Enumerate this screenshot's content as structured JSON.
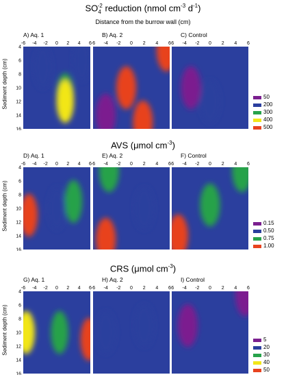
{
  "sections": [
    {
      "title_parts": [
        "SO",
        "4",
        "-2",
        " reduction (nmol cm",
        "-3",
        " d",
        "-1",
        ")"
      ],
      "subtitle": "Distance from the burrow wall (cm)",
      "ylabel": "Sediment depth (cm)",
      "panels": [
        {
          "label": "A) Aq. 1"
        },
        {
          "label": "B) Aq. 2"
        },
        {
          "label": "C) Control"
        }
      ],
      "legend": [
        {
          "label": "50",
          "color": "#7b1f8f"
        },
        {
          "label": "200",
          "color": "#2b3f9e"
        },
        {
          "label": "300",
          "color": "#27a24a"
        },
        {
          "label": "400",
          "color": "#f2e619"
        },
        {
          "label": "500",
          "color": "#e8431f"
        }
      ]
    },
    {
      "title_parts": [
        "AVS  (μmol cm",
        "-3",
        ")"
      ],
      "ylabel": "Sediment depth (cm)",
      "panels": [
        {
          "label": "D) Aq. 1"
        },
        {
          "label": "E) Aq. 2"
        },
        {
          "label": "F) Control"
        }
      ],
      "legend": [
        {
          "label": "0.15",
          "color": "#7b1f8f"
        },
        {
          "label": "0.50",
          "color": "#2b3f9e"
        },
        {
          "label": "0.75",
          "color": "#27a24a"
        },
        {
          "label": "1.00",
          "color": "#e8431f"
        }
      ]
    },
    {
      "title_parts": [
        "CRS  (μmol cm",
        "-3",
        ")"
      ],
      "ylabel": "Sediment depth (cm)",
      "panels": [
        {
          "label": "G) Aq. 1"
        },
        {
          "label": "H) Aq. 2"
        },
        {
          "label": "I) Control"
        }
      ],
      "legend": [
        {
          "label": "5",
          "color": "#7b1f8f"
        },
        {
          "label": "20",
          "color": "#2b3f9e"
        },
        {
          "label": "30",
          "color": "#27a24a"
        },
        {
          "label": "40",
          "color": "#f2e619"
        },
        {
          "label": "50",
          "color": "#e8431f"
        }
      ]
    }
  ],
  "chart_data": [
    {
      "type": "heatmap",
      "panel": "A) Aq. 1",
      "x_ticks": [
        "-6",
        "-4",
        "-2",
        "0",
        "2",
        "4",
        "6"
      ],
      "y_ticks": [
        "4",
        "6",
        "8",
        "10",
        "12",
        "14",
        "16"
      ],
      "xlim": [
        -6,
        6
      ],
      "ylim": [
        4,
        16
      ],
      "y_inverted": true,
      "features": [
        {
          "x": -2.5,
          "y": 7,
          "level": 200
        },
        {
          "x": 1.5,
          "y": 11,
          "level": 300
        },
        {
          "x": 1.5,
          "y": 12,
          "level": 400
        },
        {
          "x": 4.5,
          "y": 6,
          "level": 200
        }
      ]
    },
    {
      "type": "heatmap",
      "panel": "B) Aq. 2",
      "x_ticks": [
        "-6",
        "-4",
        "-2",
        "0",
        "2",
        "4",
        "6"
      ],
      "y_ticks": [
        "4",
        "6",
        "8",
        "10",
        "12",
        "14",
        "16"
      ],
      "xlim": [
        -6,
        6
      ],
      "ylim": [
        4,
        16
      ],
      "y_inverted": true,
      "features": [
        {
          "x": -0.8,
          "y": 10,
          "level": 500
        },
        {
          "x": 1.8,
          "y": 15,
          "level": 500
        },
        {
          "x": 5.5,
          "y": 4.5,
          "level": 500
        },
        {
          "x": -4,
          "y": 14,
          "level": 50
        }
      ]
    },
    {
      "type": "heatmap",
      "panel": "C) Control",
      "x_ticks": [
        "-6",
        "-4",
        "-2",
        "0",
        "2",
        "4",
        "6"
      ],
      "y_ticks": [
        "4",
        "6",
        "8",
        "10",
        "12",
        "14",
        "16"
      ],
      "xlim": [
        -6,
        6
      ],
      "ylim": [
        4,
        16
      ],
      "y_inverted": true,
      "features": [
        {
          "x": -3,
          "y": 10,
          "level": 50
        },
        {
          "x": 0,
          "y": 12,
          "level": 200
        }
      ]
    },
    {
      "type": "heatmap",
      "panel": "D) Aq. 1",
      "x_ticks": [
        "-6",
        "-4",
        "-2",
        "0",
        "2",
        "4",
        "6"
      ],
      "y_ticks": [
        "4",
        "6",
        "8",
        "10",
        "12",
        "14",
        "16"
      ],
      "xlim": [
        -6,
        6
      ],
      "ylim": [
        4,
        16
      ],
      "y_inverted": true,
      "features": [
        {
          "x": -5,
          "y": 11,
          "level": 1.0
        },
        {
          "x": 3,
          "y": 9,
          "level": 0.75
        },
        {
          "x": 0,
          "y": 10,
          "level": 0.5
        }
      ]
    },
    {
      "type": "heatmap",
      "panel": "E) Aq. 2",
      "x_ticks": [
        "-6",
        "-4",
        "-2",
        "0",
        "2",
        "4",
        "6"
      ],
      "y_ticks": [
        "4",
        "6",
        "8",
        "10",
        "12",
        "14",
        "16"
      ],
      "xlim": [
        -6,
        6
      ],
      "ylim": [
        4,
        16
      ],
      "y_inverted": true,
      "features": [
        {
          "x": -4,
          "y": 14.5,
          "level": 1.0
        },
        {
          "x": -3.5,
          "y": 4.5,
          "level": 0.75
        },
        {
          "x": 2,
          "y": 10,
          "level": 0.5
        }
      ]
    },
    {
      "type": "heatmap",
      "panel": "F) Control",
      "x_ticks": [
        "-6",
        "-4",
        "-2",
        "0",
        "2",
        "4",
        "6"
      ],
      "y_ticks": [
        "4",
        "6",
        "8",
        "10",
        "12",
        "14",
        "16"
      ],
      "xlim": [
        -6,
        6
      ],
      "ylim": [
        4,
        16
      ],
      "y_inverted": true,
      "features": [
        {
          "x": -5,
          "y": 14,
          "level": 1.0
        },
        {
          "x": 0,
          "y": 9.5,
          "level": 0.75
        },
        {
          "x": 5,
          "y": 4.5,
          "level": 0.75
        }
      ]
    },
    {
      "type": "heatmap",
      "panel": "G) Aq. 1",
      "x_ticks": [
        "-6",
        "-4",
        "-2",
        "0",
        "2",
        "4",
        "6"
      ],
      "y_ticks": [
        "4",
        "6",
        "8",
        "10",
        "12",
        "14",
        "16"
      ],
      "xlim": [
        -6,
        6
      ],
      "ylim": [
        4,
        16
      ],
      "y_inverted": true,
      "features": [
        {
          "x": 5.8,
          "y": 11,
          "level": 50
        },
        {
          "x": 0.5,
          "y": 10,
          "level": 30
        },
        {
          "x": -5.5,
          "y": 10,
          "level": 40
        }
      ]
    },
    {
      "type": "heatmap",
      "panel": "H) Aq. 2",
      "x_ticks": [
        "-6",
        "-4",
        "-2",
        "0",
        "2",
        "4",
        "6"
      ],
      "y_ticks": [
        "4",
        "6",
        "8",
        "10",
        "12",
        "14",
        "16"
      ],
      "xlim": [
        -6,
        6
      ],
      "ylim": [
        4,
        16
      ],
      "y_inverted": true,
      "features": [
        {
          "x": -4,
          "y": 10,
          "level": 20
        },
        {
          "x": 2,
          "y": 9,
          "level": 20
        }
      ]
    },
    {
      "type": "heatmap",
      "panel": "I) Control",
      "x_ticks": [
        "-6",
        "-4",
        "-2",
        "0",
        "2",
        "4",
        "6"
      ],
      "y_ticks": [
        "4",
        "6",
        "8",
        "10",
        "12",
        "14",
        "16"
      ],
      "xlim": [
        -6,
        6
      ],
      "ylim": [
        4,
        16
      ],
      "y_inverted": true,
      "features": [
        {
          "x": -3.5,
          "y": 9,
          "level": 5
        },
        {
          "x": 5.5,
          "y": 4.5,
          "level": 5
        }
      ]
    }
  ]
}
